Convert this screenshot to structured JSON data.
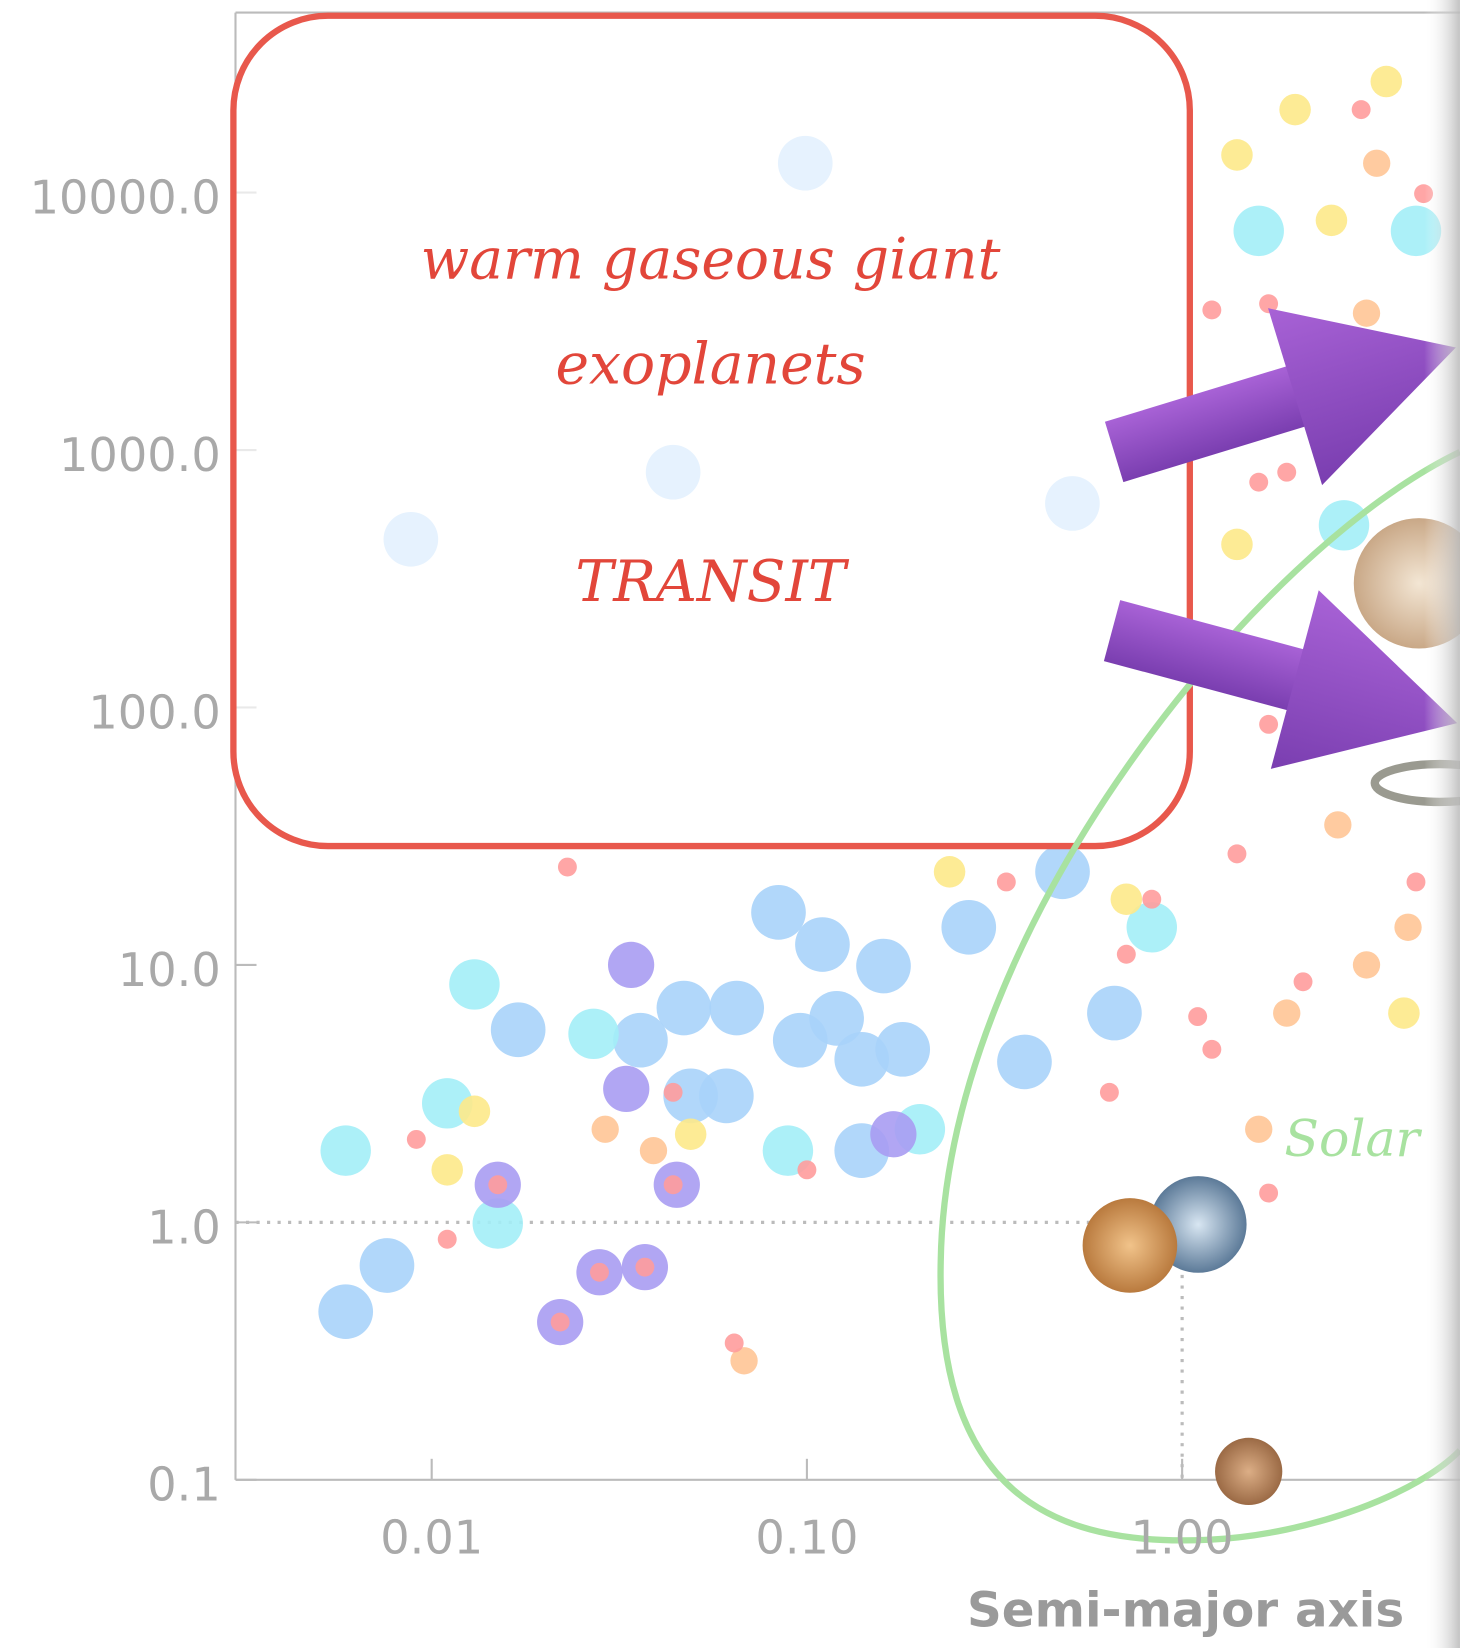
{
  "chart_data": {
    "type": "scatter",
    "xlabel": "Semi-major axis",
    "annotations": {
      "box_lines": [
        "warm gaseous giant",
        "exoplanets"
      ],
      "method": "TRANSIT",
      "curve_label": "Solar"
    },
    "xscale": "log",
    "yscale": "log",
    "xlim": [
      0.003,
      5.5
    ],
    "ylim": [
      0.1,
      50000
    ],
    "xticks": [
      0.01,
      {
        "value": 0.1,
        "label": "0.10"
      },
      {
        "value": 1,
        "label": "1.00"
      }
    ],
    "yticks": [
      0.1,
      {
        "value": 1,
        "label": "1.0"
      },
      {
        "value": 10,
        "label": "10.0"
      },
      {
        "value": 100,
        "label": "100.0"
      },
      {
        "value": 1000,
        "label": "1000.0"
      },
      {
        "value": 10000,
        "label": "10000.0"
      }
    ],
    "reference_lines": [
      {
        "axis": "y",
        "value": 1
      },
      {
        "axis": "x",
        "value": 1
      }
    ],
    "series": [
      {
        "color": "#a9d3fa",
        "x": [
          0.0059,
          0.0076,
          0.017,
          0.049,
          0.061,
          0.084,
          0.11,
          0.14,
          0.16,
          0.27,
          0.38,
          0.48,
          0.66,
          0.14,
          0.047,
          0.036,
          0.065,
          0.096,
          0.18,
          0.12,
          0.099,
          0.0088,
          0.51,
          0.044
        ],
        "values": [
          0.45,
          0.68,
          5.6,
          3.1,
          3.1,
          16,
          12,
          4.3,
          9.9,
          14,
          4.2,
          23,
          6.5,
          1.9,
          6.8,
          5.1,
          6.8,
          5.1,
          4.7,
          6.2,
          13000,
          450,
          620,
          820
        ]
      },
      {
        "color": "#a3eef7",
        "x": [
          0.0059,
          0.015,
          0.011,
          0.027,
          0.013,
          0.089,
          0.2,
          0.83,
          1.6,
          4.2,
          2.7
        ],
        "values": [
          1.9,
          0.99,
          2.9,
          5.4,
          8.4,
          1.9,
          2.3,
          14,
          7100,
          7100,
          510
        ]
      },
      {
        "color": "#fde98a",
        "x": [
          3.5,
          2.0,
          1.4,
          2.5,
          3.9,
          0.011,
          0.013,
          0.049,
          0.24,
          1.4,
          0.71
        ],
        "values": [
          27000,
          21000,
          14000,
          7800,
          6.5,
          1.6,
          2.7,
          2.2,
          23,
          430,
          18
        ]
      },
      {
        "color": "#ffc596",
        "x": [
          2.6,
          3.1,
          1.6,
          0.068,
          3.3,
          3.1,
          1.9,
          4.0,
          0.029,
          0.039
        ],
        "values": [
          35,
          10,
          2.3,
          0.29,
          13000,
          3400,
          6.5,
          14,
          2.3,
          1.9
        ]
      },
      {
        "color": "#a99cf2",
        "x": [
          0.015,
          0.022,
          0.028,
          0.037,
          0.045,
          0.033,
          0.17,
          0.034
        ],
        "values": [
          1.4,
          0.41,
          0.64,
          0.67,
          1.4,
          3.3,
          2.2,
          10
        ]
      },
      {
        "color": "#ff9c9c",
        "x": [
          1.4,
          2.1,
          1.7,
          1.2,
          1.1,
          0.83,
          0.71,
          0.64,
          1.7,
          3.0,
          4.4,
          1.2,
          1.6,
          1.9,
          4.2,
          1.7,
          0.064,
          0.011,
          0.0091,
          0.022,
          0.028,
          0.037,
          0.015,
          0.044,
          0.1,
          0.044,
          0.023,
          0.34
        ],
        "values": [
          27,
          8.6,
          1.3,
          4.7,
          6.3,
          18,
          11,
          3.2,
          3700,
          21000,
          9900,
          3500,
          750,
          820,
          21,
          86,
          0.34,
          0.86,
          2.1,
          0.41,
          0.64,
          0.67,
          1.4,
          1.4,
          1.6,
          3.2,
          24,
          21
        ]
      }
    ]
  }
}
